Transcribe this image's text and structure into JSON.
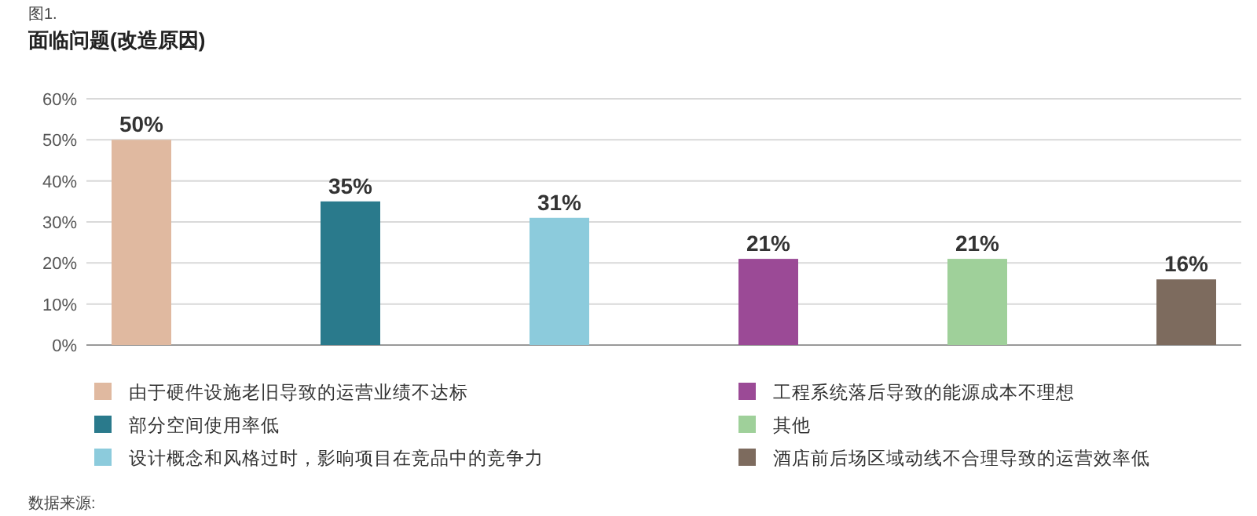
{
  "chart_data": {
    "type": "bar",
    "title": "面临问题(改造原因)",
    "subtitle": "图1.",
    "categories": [
      null,
      null,
      null,
      null,
      null,
      null
    ],
    "series": [
      {
        "name": "由于硬件设施老旧导致的运营业绩不达标",
        "color": "#e0b9a0",
        "values": [
          50,
          null,
          null,
          null,
          null,
          null
        ]
      },
      {
        "name": "部分空间使用率低",
        "color": "#2a7a8c",
        "values": [
          null,
          35,
          null,
          null,
          null,
          null
        ]
      },
      {
        "name": "设计概念和风格过时，影响项目在竞品中的竞争力",
        "color": "#8ccbdc",
        "values": [
          null,
          null,
          31,
          null,
          null,
          null
        ]
      },
      {
        "name": "工程系统落后导致的能源成本不理想",
        "color": "#9b4a96",
        "values": [
          null,
          null,
          null,
          21,
          null,
          null
        ]
      },
      {
        "name": "其他",
        "color": "#9fd09a",
        "values": [
          null,
          null,
          null,
          null,
          21,
          null
        ]
      },
      {
        "name": "酒店前后场区域动线不合理导致的运营效率低",
        "color": "#7d6b5e",
        "values": [
          null,
          null,
          null,
          null,
          null,
          16
        ]
      }
    ],
    "ylim": [
      0,
      60
    ],
    "yticks": [
      {
        "value": 0,
        "label": "0%"
      },
      {
        "value": 10,
        "label": "10%"
      },
      {
        "value": 20,
        "label": "20%"
      },
      {
        "value": 30,
        "label": "30%"
      },
      {
        "value": 40,
        "label": "40%"
      },
      {
        "value": 50,
        "label": "50%"
      },
      {
        "value": 60,
        "label": "60%"
      }
    ],
    "value_labels": [
      "50%",
      "35%",
      "31%",
      "21%",
      "21%",
      "16%"
    ],
    "grid": "y",
    "legend": "bottom",
    "annotations": [
      "数据来源:"
    ]
  }
}
